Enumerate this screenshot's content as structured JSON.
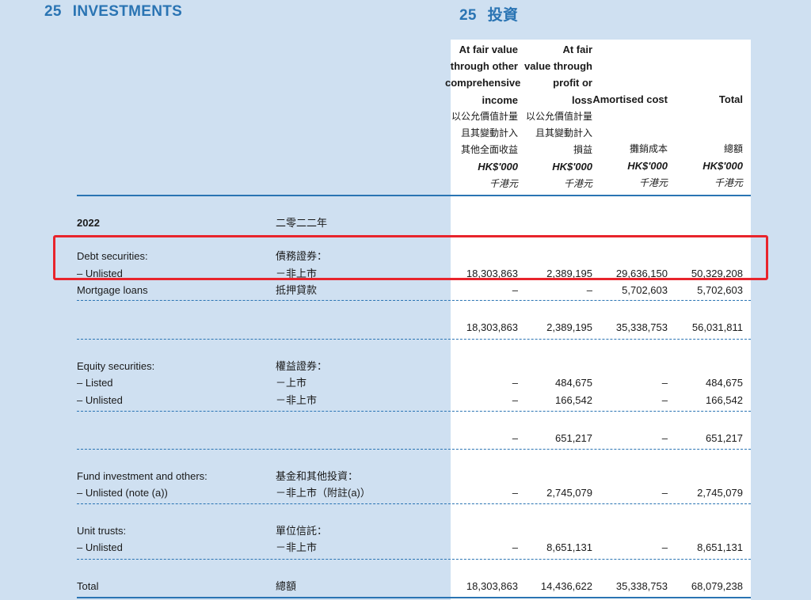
{
  "heading": {
    "en_num": "25",
    "en_title": "INVESTMENTS",
    "zh_num": "25",
    "zh_title": "投資"
  },
  "columns": [
    {
      "en": [
        "At fair value",
        "through other",
        "comprehensive",
        "income"
      ],
      "zh": [
        "以公允價值計量",
        "且其變動計入",
        "其他全面收益"
      ],
      "unit": "HK$'000",
      "unit_zh": "千港元"
    },
    {
      "en": [
        "At fair",
        "value through",
        "profit or",
        "loss"
      ],
      "zh": [
        "以公允價值計量",
        "且其變動計入",
        "損益"
      ],
      "unit": "HK$'000",
      "unit_zh": "千港元"
    },
    {
      "en": [
        "Amortised cost"
      ],
      "zh": [
        "攤銷成本"
      ],
      "unit": "HK$'000",
      "unit_zh": "千港元"
    },
    {
      "en": [
        "Total"
      ],
      "zh": [
        "總額"
      ],
      "unit": "HK$'000",
      "unit_zh": "千港元"
    }
  ],
  "year": {
    "en": "2022",
    "zh": "二零二二年"
  },
  "debt": {
    "label_en": "Debt securities:",
    "label_zh": "債務證券：",
    "unlisted": {
      "en": "– Unlisted",
      "zh": "－非上市",
      "values": [
        "18,303,863",
        "2,389,195",
        "29,636,150",
        "50,329,208"
      ]
    },
    "mortgage": {
      "en": "Mortgage loans",
      "zh": "抵押貸款",
      "values": [
        "–",
        "–",
        "5,702,603",
        "5,702,603"
      ]
    },
    "subtotal": [
      "18,303,863",
      "2,389,195",
      "35,338,753",
      "56,031,811"
    ]
  },
  "equity": {
    "label_en": "Equity securities:",
    "label_zh": "權益證券：",
    "listed": {
      "en": "– Listed",
      "zh": "－上市",
      "values": [
        "–",
        "484,675",
        "–",
        "484,675"
      ]
    },
    "unlisted": {
      "en": "– Unlisted",
      "zh": "－非上市",
      "values": [
        "–",
        "166,542",
        "–",
        "166,542"
      ]
    },
    "subtotal": [
      "–",
      "651,217",
      "–",
      "651,217"
    ]
  },
  "fund": {
    "label_en": "Fund investment and others:",
    "label_zh": "基金和其他投資：",
    "unlisted": {
      "en": "– Unlisted (note (a))",
      "zh": "－非上市（附註(a)）",
      "values": [
        "–",
        "2,745,079",
        "–",
        "2,745,079"
      ]
    }
  },
  "trusts": {
    "label_en": "Unit trusts:",
    "label_zh": "單位信託：",
    "unlisted": {
      "en": "– Unlisted",
      "zh": "－非上市",
      "values": [
        "–",
        "8,651,131",
        "–",
        "8,651,131"
      ]
    }
  },
  "total": {
    "en": "Total",
    "zh": "總額",
    "values": [
      "18,303,863",
      "14,436,622",
      "35,338,753",
      "68,079,238"
    ]
  },
  "colors": {
    "accent": "#2a74b3",
    "background": "#cfe0f1",
    "highlight": "#e8242c"
  }
}
